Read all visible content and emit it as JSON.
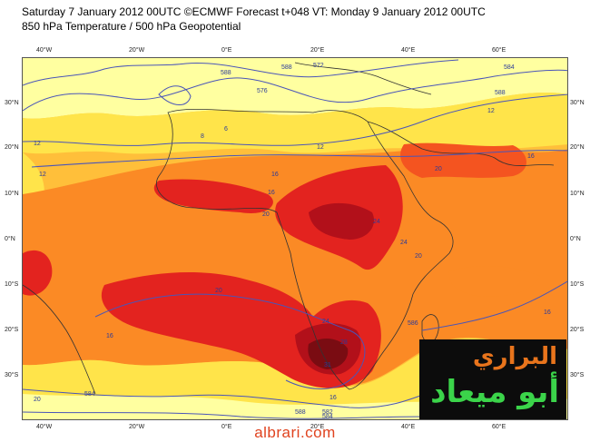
{
  "title": {
    "line1": "Saturday 7 January 2012 00UTC ©ECMWF Forecast t+048 VT: Monday 9 January 2012 00UTC",
    "line2": "850 hPa Temperature / 500 hPa Geopotential"
  },
  "axes": {
    "lon_top": [
      "40°W",
      "20°W",
      "0°E",
      "20°E",
      "40°E",
      "60°E"
    ],
    "lon_bottom": [
      "40°W",
      "20°W",
      "0°E",
      "20°E",
      "40°E",
      "60°E"
    ],
    "lat_left": [
      "30°N",
      "20°N",
      "10°N",
      "0°N",
      "10°S",
      "20°S",
      "30°S"
    ],
    "lat_right": [
      "30°N",
      "20°N",
      "10°N",
      "0°N",
      "10°S",
      "20°S",
      "30°S"
    ]
  },
  "contour_labels": [
    "588",
    "588",
    "576",
    "572",
    "584",
    "588",
    "12",
    "12",
    "16",
    "16",
    "20",
    "20",
    "24",
    "24",
    "20",
    "20",
    "16",
    "16",
    "20",
    "24",
    "28",
    "31",
    "16",
    "12",
    "586",
    "584",
    "588",
    "582",
    "584",
    "6",
    "8",
    "12",
    "16"
  ],
  "logo": {
    "line1": "البراري",
    "line2": "أبو ميعاد"
  },
  "watermark": "albrari.com",
  "colors": {
    "pale_yellow": "#ffffa0",
    "yellow": "#ffe44a",
    "light_orange": "#ffbf3a",
    "orange": "#fb8a25",
    "red_orange": "#f45420",
    "red": "#e3231f",
    "dark_red": "#b2101a",
    "maroon": "#7a0c12",
    "contour": "#4a55b8",
    "coast": "#333333"
  }
}
